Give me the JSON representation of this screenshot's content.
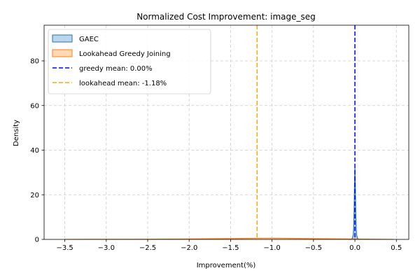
{
  "chart_data": {
    "type": "area",
    "title": "Normalized Cost Improvement: image_seg",
    "xlabel": "Improvement(%)",
    "ylabel": "Density",
    "xlim": [
      -3.75,
      0.65
    ],
    "ylim": [
      0,
      96
    ],
    "xticks": [
      -3.5,
      -3.0,
      -2.5,
      -2.0,
      -1.5,
      -1.0,
      -0.5,
      0.0,
      0.5
    ],
    "xtick_labels": [
      "−3.5",
      "−3.0",
      "−2.5",
      "−2.0",
      "−1.5",
      "−1.0",
      "−0.5",
      "0.0",
      "0.5"
    ],
    "yticks": [
      0,
      20,
      40,
      60,
      80
    ],
    "ytick_labels": [
      "0",
      "20",
      "40",
      "60",
      "80"
    ],
    "grid": true,
    "legend_position": "top-left",
    "series": [
      {
        "name": "GAEC",
        "kind": "density",
        "color": "#1f77b4",
        "x": [
          -0.06,
          -0.04,
          -0.03,
          -0.02,
          -0.015,
          -0.01,
          -0.005,
          0.0,
          0.005,
          0.01,
          0.015,
          0.02,
          0.03,
          0.04,
          0.06
        ],
        "y": [
          0,
          0.2,
          0.6,
          2,
          5,
          12,
          24,
          32,
          24,
          12,
          5,
          2,
          0.6,
          0.2,
          0
        ]
      },
      {
        "name": "Lookahead Greedy Joining",
        "kind": "density",
        "color": "#ff7f0e",
        "x": [
          -3.5,
          -3.0,
          -2.5,
          -2.0,
          -1.5,
          -1.18,
          -1.0,
          -0.5,
          0.0,
          0.47
        ],
        "y": [
          0.02,
          0.05,
          0.1,
          0.2,
          0.4,
          0.5,
          0.55,
          0.35,
          0.15,
          0.02
        ]
      }
    ],
    "reference_lines": [
      {
        "name": "greedy mean: 0.00%",
        "x": 0.0,
        "color": "#0000ff"
      },
      {
        "name": "lookahead mean: -1.18%",
        "x": -1.18,
        "color": "#ffa500"
      }
    ]
  }
}
